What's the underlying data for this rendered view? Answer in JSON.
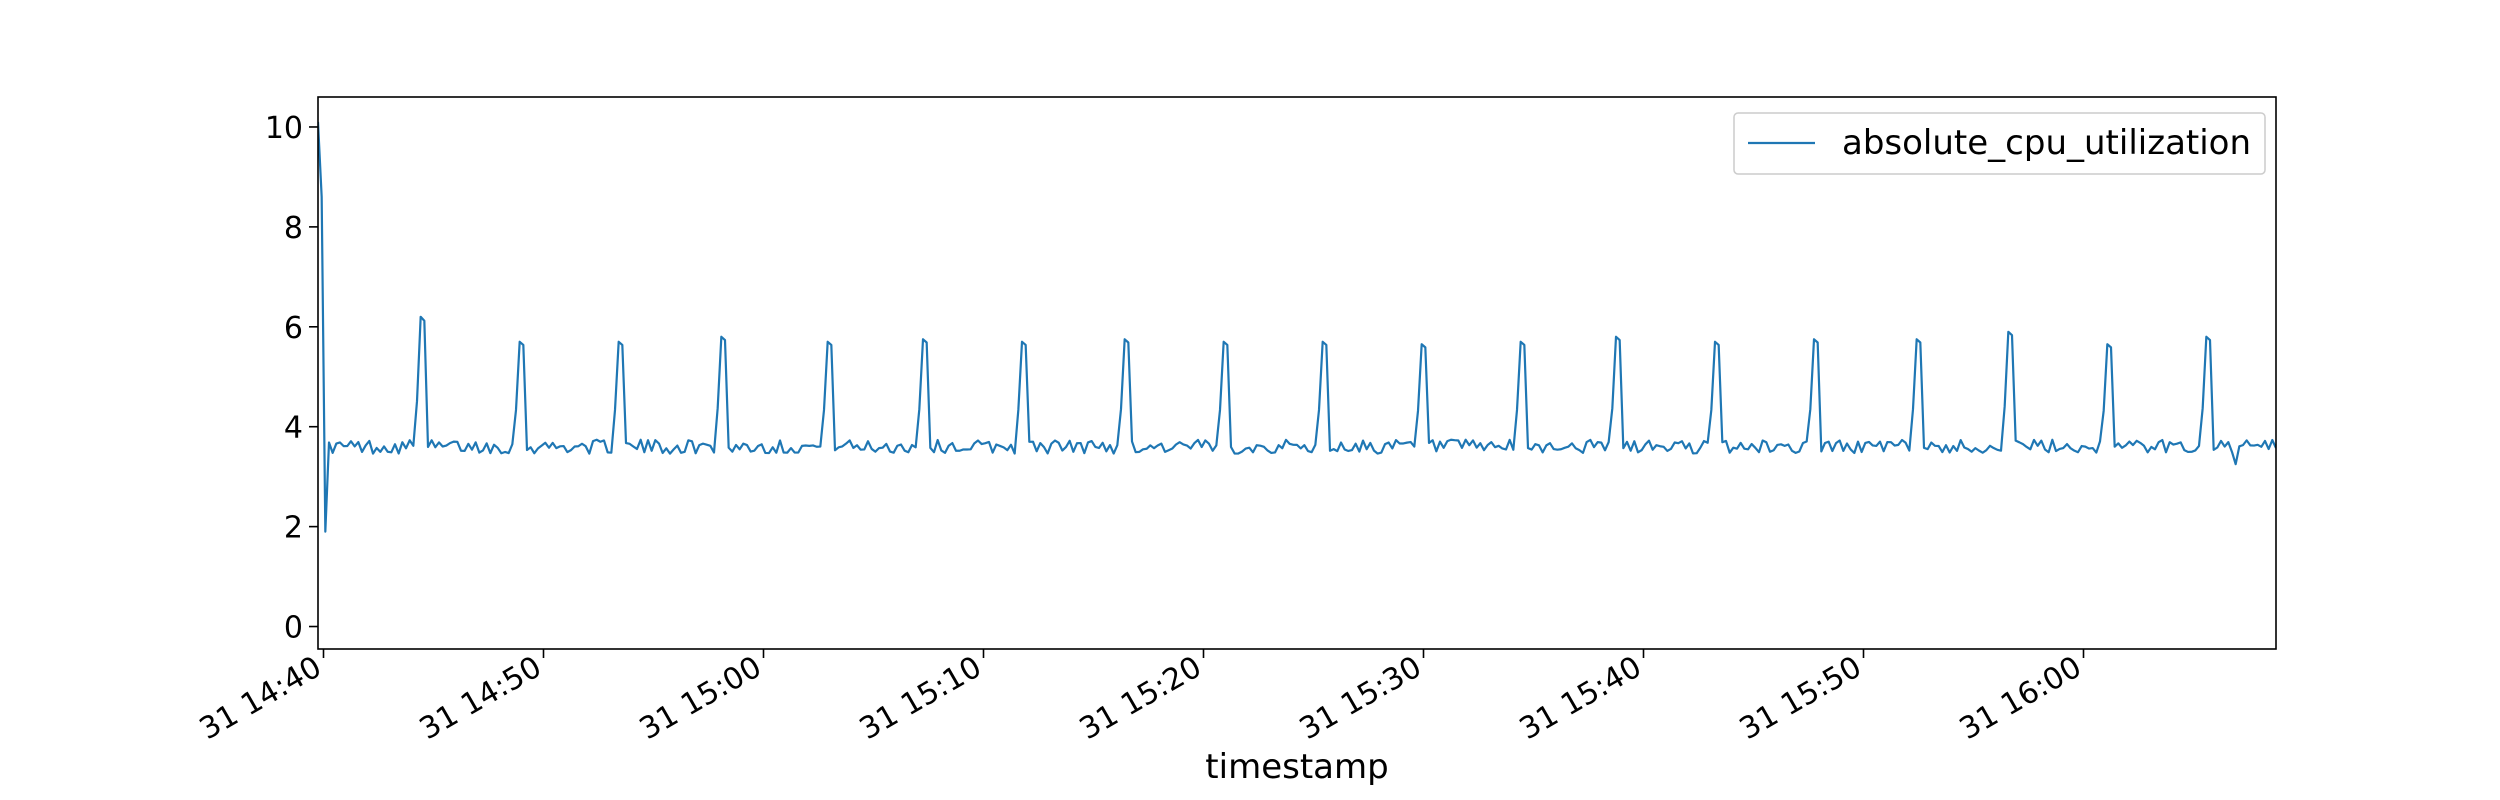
{
  "chart_data": {
    "type": "line",
    "xlabel": "timestamp",
    "ylabel": "",
    "title": "",
    "ylim": [
      -0.45,
      10.6
    ],
    "yticks": [
      0,
      2,
      4,
      6,
      8,
      10
    ],
    "x_start": "31 14:39:45",
    "x_end": "31 16:08:45",
    "sample_interval_seconds": 10,
    "xticks": [
      "31 14:40",
      "31 14:50",
      "31 15:00",
      "31 15:10",
      "31 15:20",
      "31 15:30",
      "31 15:40",
      "31 15:50",
      "31 16:00"
    ],
    "legend": {
      "position": "upper-right"
    },
    "grid": false,
    "series": [
      {
        "name": "absolute_cpu_utilization",
        "color": "#1f77b4",
        "baseline": 3.6,
        "peaks": [
          {
            "time": "31 14:39:45",
            "value": 10.1
          },
          {
            "time": "31 14:44:25",
            "value": 6.2
          },
          {
            "time": "31 14:48:55",
            "value": 5.7
          },
          {
            "time": "31 14:53:25",
            "value": 5.7
          },
          {
            "time": "31 14:58:05",
            "value": 5.8
          },
          {
            "time": "31 15:02:55",
            "value": 5.7
          },
          {
            "time": "31 15:07:15",
            "value": 5.75
          },
          {
            "time": "31 15:11:45",
            "value": 5.7
          },
          {
            "time": "31 15:16:25",
            "value": 5.75
          },
          {
            "time": "31 15:20:55",
            "value": 5.7
          },
          {
            "time": "31 15:25:25",
            "value": 5.7
          },
          {
            "time": "31 15:29:55",
            "value": 5.65
          },
          {
            "time": "31 15:34:25",
            "value": 5.7
          },
          {
            "time": "31 15:38:45",
            "value": 5.8
          },
          {
            "time": "31 15:43:15",
            "value": 5.7
          },
          {
            "time": "31 15:47:45",
            "value": 5.75
          },
          {
            "time": "31 15:52:25",
            "value": 5.75
          },
          {
            "time": "31 15:56:35",
            "value": 5.9
          },
          {
            "time": "31 16:01:05",
            "value": 5.65
          },
          {
            "time": "31 16:05:35",
            "value": 5.8
          }
        ],
        "dips": [
          {
            "time": "31 14:40:00",
            "value": 1.9
          },
          {
            "time": "31 16:06:55",
            "value": 3.25
          }
        ]
      }
    ]
  }
}
